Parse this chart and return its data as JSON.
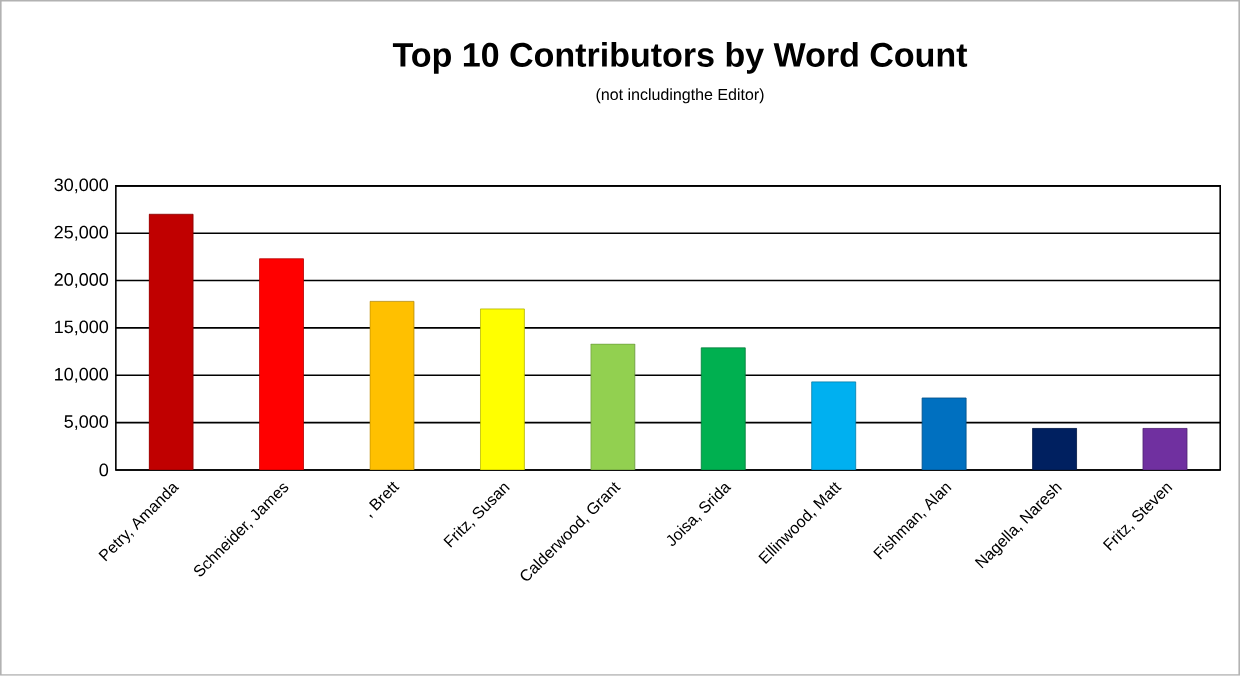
{
  "chart_data": {
    "type": "bar",
    "title": "Top 10 Contributors by Word Count",
    "subtitle": "(not includingthe Editor)",
    "categories": [
      "Petry, Amanda",
      "Schneider, James",
      ", Brett",
      "Fritz, Susan",
      "Calderwood, Grant",
      "Joisa, Srida",
      "Ellinwood, Matt",
      "Fishman, Alan",
      "Nagella, Naresh",
      "Fritz, Steven"
    ],
    "values": [
      27000,
      22300,
      17800,
      17000,
      13300,
      12900,
      9300,
      7600,
      4400,
      4400
    ],
    "colors": [
      "#c00000",
      "#ff0000",
      "#ffc000",
      "#ffff00",
      "#92d050",
      "#00b050",
      "#00b0f0",
      "#0070c0",
      "#002060",
      "#7030a0"
    ],
    "ylim": [
      0,
      30000
    ],
    "yticks": [
      {
        "value": 0,
        "label": "0"
      },
      {
        "value": 5000,
        "label": "5,000"
      },
      {
        "value": 10000,
        "label": "10,000"
      },
      {
        "value": 15000,
        "label": "15,000"
      },
      {
        "value": 20000,
        "label": "20,000"
      },
      {
        "value": 25000,
        "label": "25,000"
      },
      {
        "value": 30000,
        "label": "30,000"
      }
    ],
    "grid": "y"
  }
}
